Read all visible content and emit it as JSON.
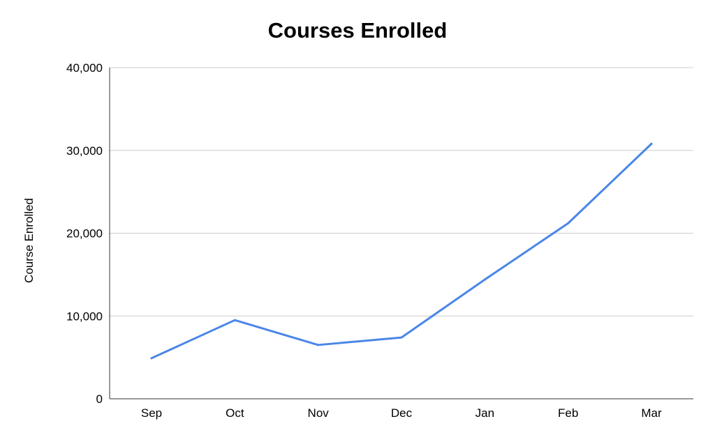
{
  "chart_data": {
    "type": "line",
    "title": "Courses Enrolled",
    "xlabel": "",
    "ylabel": "Course Enrolled",
    "categories": [
      "Sep",
      "Oct",
      "Nov",
      "Dec",
      "Jan",
      "Feb",
      "Mar"
    ],
    "series": [
      {
        "values": [
          4900,
          9500,
          6500,
          7400,
          14400,
          21200,
          30800
        ],
        "color": "#4a86e8"
      }
    ],
    "ylim": [
      0,
      40000
    ],
    "yticks": [
      0,
      10000,
      20000,
      30000,
      40000
    ],
    "ytick_labels": [
      "0",
      "10,000",
      "20,000",
      "30,000",
      "40,000"
    ],
    "grid": true,
    "legend": "none"
  }
}
